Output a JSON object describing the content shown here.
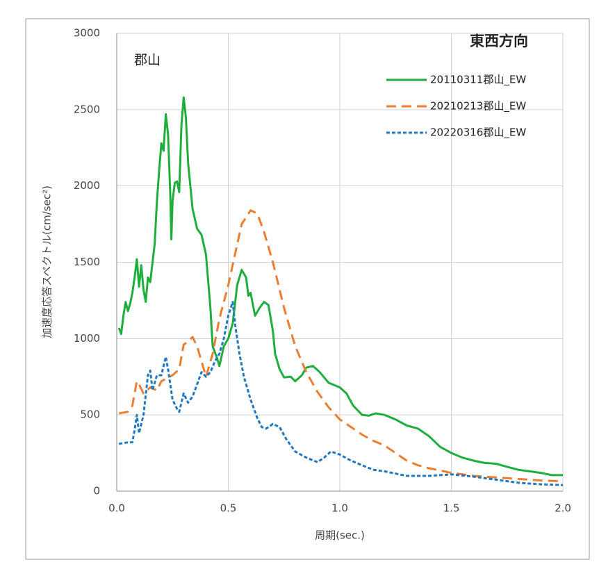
{
  "chart_data": {
    "type": "line",
    "title": "東西方向",
    "annotation": "郡山",
    "x_label": "周期(sec.)",
    "y_label": "加速度応答スペクトル(cm/sec²)",
    "xlim": [
      0,
      2
    ],
    "ylim": [
      0,
      3000
    ],
    "xticks": [
      {
        "value": 0,
        "label": "0.0"
      },
      0.5,
      {
        "value": 1,
        "label": "1.0"
      },
      1.5,
      {
        "value": 2,
        "label": "2.0"
      }
    ],
    "yticks": [
      0,
      500,
      1000,
      1500,
      2000,
      2500,
      3000
    ],
    "grid": true,
    "legend": "upper right",
    "series": [
      {
        "name": "20110311郡山_EW",
        "color": "#1fae3c",
        "line_style": "solid",
        "x": [
          0.01,
          0.02,
          0.03,
          0.04,
          0.05,
          0.06,
          0.07,
          0.08,
          0.09,
          0.1,
          0.11,
          0.12,
          0.13,
          0.14,
          0.15,
          0.17,
          0.18,
          0.19,
          0.2,
          0.21,
          0.22,
          0.23,
          0.24,
          0.245,
          0.25,
          0.26,
          0.27,
          0.28,
          0.29,
          0.3,
          0.31,
          0.32,
          0.34,
          0.36,
          0.38,
          0.4,
          0.42,
          0.43,
          0.45,
          0.46,
          0.48,
          0.5,
          0.52,
          0.54,
          0.56,
          0.58,
          0.59,
          0.6,
          0.62,
          0.64,
          0.66,
          0.68,
          0.7,
          0.71,
          0.73,
          0.75,
          0.78,
          0.8,
          0.83,
          0.85,
          0.88,
          0.91,
          0.95,
          1.0,
          1.03,
          1.06,
          1.1,
          1.13,
          1.16,
          1.2,
          1.25,
          1.3,
          1.35,
          1.4,
          1.45,
          1.5,
          1.55,
          1.6,
          1.65,
          1.7,
          1.75,
          1.8,
          1.85,
          1.9,
          1.95,
          2.0
        ],
        "values": [
          1070,
          1030,
          1150,
          1240,
          1180,
          1230,
          1300,
          1400,
          1520,
          1340,
          1480,
          1320,
          1240,
          1400,
          1370,
          1620,
          1900,
          2100,
          2280,
          2230,
          2470,
          2340,
          1950,
          1650,
          1900,
          2020,
          2030,
          1960,
          2400,
          2580,
          2450,
          2150,
          1850,
          1720,
          1680,
          1550,
          1200,
          950,
          870,
          820,
          950,
          1000,
          1100,
          1350,
          1450,
          1400,
          1280,
          1300,
          1150,
          1200,
          1240,
          1220,
          1050,
          900,
          800,
          745,
          750,
          720,
          760,
          810,
          820,
          780,
          710,
          680,
          640,
          560,
          500,
          495,
          510,
          500,
          470,
          430,
          410,
          360,
          290,
          250,
          220,
          200,
          185,
          180,
          160,
          140,
          130,
          120,
          105,
          105
        ]
      },
      {
        "name": "20210213郡山_EW",
        "color": "#ed7d31",
        "line_style": "dashed",
        "x": [
          0.01,
          0.05,
          0.07,
          0.09,
          0.1,
          0.12,
          0.15,
          0.18,
          0.2,
          0.25,
          0.28,
          0.3,
          0.32,
          0.34,
          0.36,
          0.38,
          0.4,
          0.43,
          0.46,
          0.5,
          0.53,
          0.56,
          0.6,
          0.63,
          0.66,
          0.7,
          0.75,
          0.8,
          0.85,
          0.9,
          0.95,
          1.0,
          1.05,
          1.1,
          1.15,
          1.2,
          1.25,
          1.3,
          1.35,
          1.4,
          1.5,
          1.6,
          1.7,
          1.8,
          1.9,
          2.0
        ],
        "values": [
          510,
          520,
          560,
          720,
          700,
          640,
          680,
          660,
          720,
          760,
          800,
          960,
          980,
          1010,
          950,
          850,
          750,
          900,
          1130,
          1350,
          1550,
          1750,
          1840,
          1820,
          1700,
          1500,
          1200,
          950,
          780,
          650,
          550,
          470,
          420,
          370,
          330,
          300,
          250,
          200,
          170,
          150,
          120,
          100,
          90,
          80,
          70,
          65
        ]
      },
      {
        "name": "20220316郡山_EW",
        "color": "#1f78c1",
        "line_style": "dotted",
        "x": [
          0.01,
          0.05,
          0.07,
          0.08,
          0.09,
          0.1,
          0.12,
          0.14,
          0.15,
          0.16,
          0.18,
          0.2,
          0.22,
          0.23,
          0.25,
          0.27,
          0.28,
          0.3,
          0.32,
          0.34,
          0.36,
          0.38,
          0.4,
          0.42,
          0.44,
          0.46,
          0.48,
          0.5,
          0.52,
          0.53,
          0.55,
          0.57,
          0.6,
          0.63,
          0.65,
          0.67,
          0.7,
          0.73,
          0.76,
          0.8,
          0.85,
          0.9,
          0.93,
          0.96,
          1.0,
          1.05,
          1.1,
          1.15,
          1.2,
          1.3,
          1.4,
          1.5,
          1.6,
          1.7,
          1.8,
          1.9,
          2.0
        ],
        "values": [
          310,
          320,
          320,
          400,
          500,
          380,
          500,
          760,
          790,
          660,
          760,
          760,
          880,
          800,
          600,
          540,
          520,
          640,
          580,
          620,
          700,
          780,
          750,
          780,
          850,
          900,
          1000,
          1150,
          1240,
          1100,
          900,
          750,
          600,
          480,
          420,
          410,
          440,
          420,
          340,
          260,
          220,
          190,
          220,
          260,
          240,
          200,
          170,
          140,
          130,
          100,
          100,
          110,
          95,
          75,
          55,
          45,
          40
        ]
      }
    ]
  }
}
